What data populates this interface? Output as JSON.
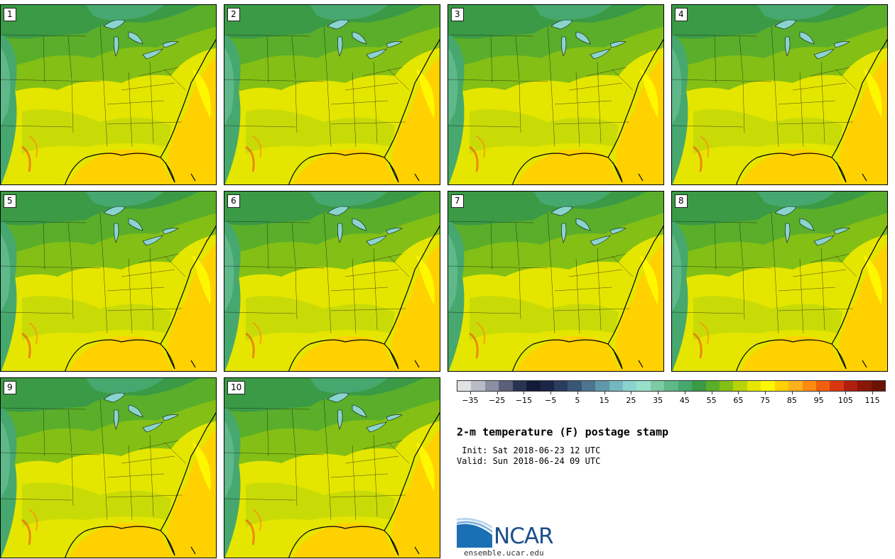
{
  "panels": [
    {
      "label": "1"
    },
    {
      "label": "2"
    },
    {
      "label": "3"
    },
    {
      "label": "4"
    },
    {
      "label": "5"
    },
    {
      "label": "6"
    },
    {
      "label": "7"
    },
    {
      "label": "8"
    },
    {
      "label": "9"
    },
    {
      "label": "10"
    }
  ],
  "colorbar": {
    "colors": [
      "#e2e2e6",
      "#b9bbc7",
      "#8b8fa4",
      "#5a607a",
      "#2b3353",
      "#141b3a",
      "#1a2547",
      "#2b3d5e",
      "#3a5676",
      "#4d7590",
      "#5f98a8",
      "#74b7bd",
      "#8ad4d0",
      "#98e0c9",
      "#7ccba5",
      "#5eb889",
      "#46a86e",
      "#3a9a45",
      "#5aae2a",
      "#84bf15",
      "#b7d40b",
      "#e4e600",
      "#fff700",
      "#ffd100",
      "#ffb21a",
      "#ff8a12",
      "#f05f0e",
      "#d8380d",
      "#b11f0e",
      "#8a1608",
      "#6b1206"
    ],
    "ticks": [
      "−35",
      "−25",
      "−15",
      "−5",
      "5",
      "15",
      "25",
      "35",
      "45",
      "55",
      "65",
      "75",
      "85",
      "95",
      "105",
      "115"
    ],
    "min": -40,
    "max": 120
  },
  "title": "2-m temperature (F) postage stamp",
  "init": " Init: Sat 2018-06-23 12 UTC",
  "valid": "Valid: Sun 2018-06-24 09 UTC",
  "logo": {
    "text": "NCAR",
    "url": "ensemble.ucar.edu",
    "color": "#1b4f8c"
  }
}
